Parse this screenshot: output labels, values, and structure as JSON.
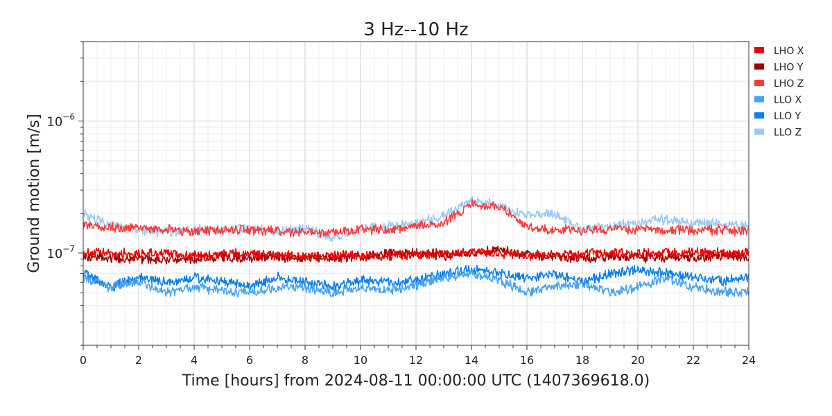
{
  "chart_data": {
    "type": "line",
    "title": "3 Hz--10 Hz",
    "xlabel": "Time [hours] from 2024-08-11 00:00:00 UTC (1407369618.0)",
    "ylabel": "Ground motion [m/s]",
    "xlim": [
      0,
      24
    ],
    "ylim": [
      2e-08,
      4e-06
    ],
    "yscale": "log",
    "grid": true,
    "legend_position": "outside-top-right",
    "x_ticks": [
      0,
      2,
      4,
      6,
      8,
      10,
      12,
      14,
      16,
      18,
      20,
      22,
      24
    ],
    "x_tick_labels": [
      "0",
      "2",
      "4",
      "6",
      "8",
      "10",
      "12",
      "14",
      "16",
      "18",
      "20",
      "22",
      "24"
    ],
    "y_ticks": [
      1e-07,
      1e-06
    ],
    "y_tick_labels": [
      {
        "base": "10",
        "exp": "−7"
      },
      {
        "base": "10",
        "exp": "−6"
      }
    ],
    "series": [
      {
        "name": "LHO X",
        "color": "#ee0000",
        "x": [
          0,
          1,
          2,
          3,
          4,
          5,
          6,
          7,
          8,
          9,
          10,
          11,
          12,
          13,
          14,
          15,
          16,
          17,
          18,
          19,
          20,
          21,
          22,
          23,
          24
        ],
        "y": [
          1e-07,
          1e-07,
          9.8e-08,
          1e-07,
          9.5e-08,
          9.8e-08,
          9.8e-08,
          9.6e-08,
          9.5e-08,
          9.6e-08,
          9.5e-08,
          9.5e-08,
          9.8e-08,
          1e-07,
          1e-07,
          1e-07,
          9.6e-08,
          9.6e-08,
          9.8e-08,
          1e-07,
          1e-07,
          1e-07,
          1e-07,
          1e-07,
          1e-07
        ]
      },
      {
        "name": "LHO Y",
        "color": "#a30000",
        "x": [
          0,
          1,
          2,
          3,
          4,
          5,
          6,
          7,
          8,
          9,
          10,
          11,
          12,
          13,
          14,
          15,
          16,
          17,
          18,
          19,
          20,
          21,
          22,
          23,
          24
        ],
        "y": [
          9.3e-08,
          9.2e-08,
          9e-08,
          9e-08,
          9e-08,
          9.3e-08,
          9.2e-08,
          9.3e-08,
          9.2e-08,
          9.2e-08,
          9.3e-08,
          1e-07,
          1e-07,
          9.5e-08,
          9.8e-08,
          1.05e-07,
          9.5e-08,
          9.3e-08,
          9.2e-08,
          9.3e-08,
          9.3e-08,
          9.3e-08,
          9.3e-08,
          9.3e-08,
          9.3e-08
        ]
      },
      {
        "name": "LHO Z",
        "color": "#ff3b3b",
        "x": [
          0,
          1,
          2,
          3,
          4,
          5,
          6,
          7,
          8,
          9,
          10,
          11,
          12,
          13,
          14,
          15,
          16,
          17,
          18,
          19,
          20,
          21,
          22,
          23,
          24
        ],
        "y": [
          1.65e-07,
          1.55e-07,
          1.55e-07,
          1.5e-07,
          1.45e-07,
          1.5e-07,
          1.5e-07,
          1.45e-07,
          1.45e-07,
          1.45e-07,
          1.5e-07,
          1.5e-07,
          1.6e-07,
          1.7e-07,
          2.3e-07,
          2.3e-07,
          1.55e-07,
          1.5e-07,
          1.5e-07,
          1.5e-07,
          1.5e-07,
          1.5e-07,
          1.5e-07,
          1.5e-07,
          1.45e-07
        ]
      },
      {
        "name": "LLO X",
        "color": "#4aa3f5",
        "x": [
          0,
          1,
          2,
          3,
          4,
          5,
          6,
          7,
          8,
          9,
          10,
          11,
          12,
          13,
          14,
          15,
          16,
          17,
          18,
          19,
          20,
          21,
          22,
          23,
          24
        ],
        "y": [
          6.5e-08,
          5.5e-08,
          6e-08,
          5e-08,
          5.5e-08,
          5.2e-08,
          5e-08,
          5.5e-08,
          5.5e-08,
          5e-08,
          5.5e-08,
          5.2e-08,
          5.8e-08,
          6.5e-08,
          7e-08,
          6.2e-08,
          5e-08,
          5.5e-08,
          5.8e-08,
          5e-08,
          5.5e-08,
          6.5e-08,
          5.5e-08,
          5e-08,
          5.2e-08
        ]
      },
      {
        "name": "LLO Y",
        "color": "#0a7ff0",
        "x": [
          0,
          1,
          2,
          3,
          4,
          5,
          6,
          7,
          8,
          9,
          10,
          11,
          12,
          13,
          14,
          15,
          16,
          17,
          18,
          19,
          20,
          21,
          22,
          23,
          24
        ],
        "y": [
          7e-08,
          5.5e-08,
          6.5e-08,
          6e-08,
          6.5e-08,
          6e-08,
          5.5e-08,
          6.5e-08,
          6e-08,
          5.5e-08,
          6.2e-08,
          6e-08,
          6.2e-08,
          7e-08,
          7.5e-08,
          7e-08,
          6.5e-08,
          7e-08,
          6e-08,
          7e-08,
          7.5e-08,
          7e-08,
          6.5e-08,
          6.2e-08,
          6.5e-08
        ]
      },
      {
        "name": "LLO Z",
        "color": "#9cc9f7",
        "x": [
          0,
          1,
          2,
          3,
          4,
          5,
          6,
          7,
          8,
          9,
          10,
          11,
          12,
          13,
          14,
          15,
          16,
          17,
          18,
          19,
          20,
          21,
          22,
          23,
          24
        ],
        "y": [
          2e-07,
          1.6e-07,
          1.5e-07,
          1.45e-07,
          1.5e-07,
          1.5e-07,
          1.55e-07,
          1.45e-07,
          1.55e-07,
          1.3e-07,
          1.55e-07,
          1.6e-07,
          1.65e-07,
          1.9e-07,
          2.5e-07,
          2.3e-07,
          1.9e-07,
          2e-07,
          1.5e-07,
          1.6e-07,
          1.7e-07,
          1.8e-07,
          1.7e-07,
          1.65e-07,
          1.6e-07
        ]
      }
    ]
  }
}
